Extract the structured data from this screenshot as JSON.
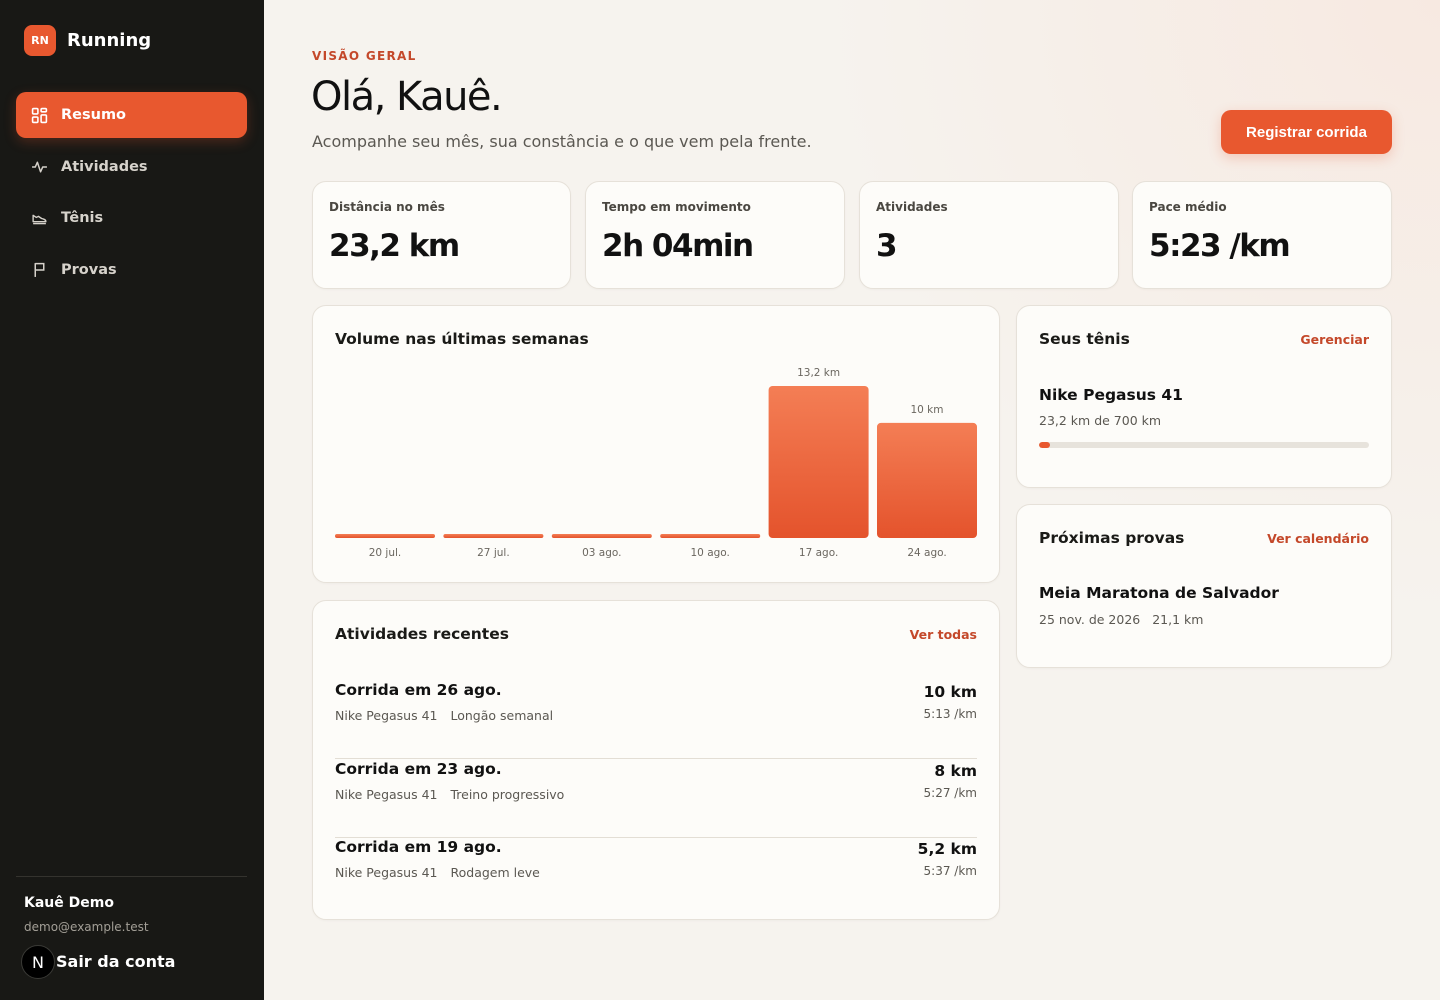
{
  "brand": {
    "logo": "RN",
    "name": "Running"
  },
  "nav": [
    {
      "label": "Resumo",
      "icon": "dashboard-icon",
      "active": true
    },
    {
      "label": "Atividades",
      "icon": "activity-pulse-icon",
      "active": false
    },
    {
      "label": "Tênis",
      "icon": "shoe-icon",
      "active": false
    },
    {
      "label": "Provas",
      "icon": "flag-icon",
      "active": false
    }
  ],
  "user": {
    "name": "Kauê Demo",
    "email": "demo@example.test",
    "logout": "Sair da conta",
    "badge": "N"
  },
  "header": {
    "eyebrow": "VISÃO GERAL",
    "greeting": "Olá, Kauê.",
    "subtitle": "Acompanhe seu mês, sua constância e o que vem pela frente.",
    "cta": "Registrar corrida"
  },
  "stats": [
    {
      "label": "Distância no mês",
      "value": "23,2 km"
    },
    {
      "label": "Tempo em movimento",
      "value": "2h 04min"
    },
    {
      "label": "Atividades",
      "value": "3"
    },
    {
      "label": "Pace médio",
      "value": "5:23 /km"
    }
  ],
  "volume": {
    "title": "Volume nas últimas semanas"
  },
  "chart_data": {
    "type": "bar",
    "title": "Volume nas últimas semanas",
    "categories": [
      "20 jul.",
      "27 jul.",
      "03 ago.",
      "10 ago.",
      "17 ago.",
      "24 ago."
    ],
    "values": [
      0,
      0,
      0,
      0,
      13.2,
      10
    ],
    "data_labels": [
      "",
      "",
      "",
      "",
      "13,2 km",
      "10 km"
    ],
    "unit": "km",
    "ylim": [
      0,
      13.2
    ],
    "grid": false,
    "colors": {
      "bar_top": "#f47e55",
      "bar_bottom": "#e4532c"
    }
  },
  "recent": {
    "title": "Atividades recentes",
    "link": "Ver todas",
    "items": [
      {
        "title": "Corrida em 26 ago.",
        "shoe": "Nike Pegasus 41",
        "note": "Longão semanal",
        "distance": "10 km",
        "pace": "5:13 /km"
      },
      {
        "title": "Corrida em 23 ago.",
        "shoe": "Nike Pegasus 41",
        "note": "Treino progressivo",
        "distance": "8 km",
        "pace": "5:27 /km"
      },
      {
        "title": "Corrida em 19 ago.",
        "shoe": "Nike Pegasus 41",
        "note": "Rodagem leve",
        "distance": "5,2 km",
        "pace": "5:37 /km"
      }
    ]
  },
  "shoes": {
    "title": "Seus tênis",
    "link": "Gerenciar",
    "name": "Nike Pegasus 41",
    "meta": "23,2 km de 700 km",
    "progress": 0.033
  },
  "races": {
    "title": "Próximas provas",
    "link": "Ver calendário",
    "name": "Meia Maratona de Salvador",
    "date": "25 nov. de 2026",
    "distance": "21,1 km"
  },
  "colors": {
    "accent": "#e8582f",
    "accent_text": "#c4482a",
    "sidebar": "#181815",
    "background": "#f6f3ee"
  }
}
